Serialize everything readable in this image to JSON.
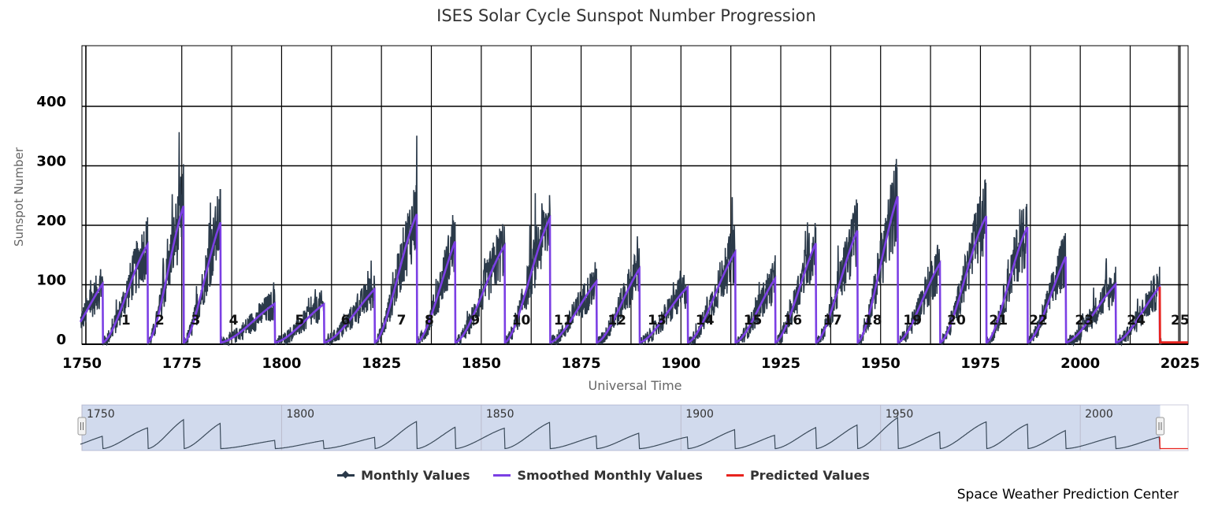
{
  "chart_data": {
    "type": "line",
    "title": "ISES Solar Cycle Sunspot Number Progression",
    "xlabel": "Universal Time",
    "ylabel": "Sunspot Number",
    "xlim": [
      1750,
      2027
    ],
    "ylim": [
      0,
      400
    ],
    "x_ticks": [
      "1750",
      "1775",
      "1800",
      "1825",
      "1850",
      "1875",
      "1900",
      "1925",
      "1950",
      "1975",
      "2000",
      "2025"
    ],
    "y_ticks": [
      "0",
      "100",
      "200",
      "300",
      "400"
    ],
    "grid": true,
    "legend_position": "bottom-center",
    "cycles": [
      {
        "label": "1",
        "year": 1761,
        "peak": 130
      },
      {
        "label": "2",
        "year": 1769.5,
        "peak": 180
      },
      {
        "label": "3",
        "year": 1778.5,
        "peak": 262
      },
      {
        "label": "4",
        "year": 1788,
        "peak": 233
      },
      {
        "label": "5",
        "year": 1804.5,
        "peak": 80
      },
      {
        "label": "6",
        "year": 1816,
        "peak": 78
      },
      {
        "label": "7",
        "year": 1830,
        "peak": 115
      },
      {
        "label": "8",
        "year": 1837,
        "peak": 240
      },
      {
        "label": "9",
        "year": 1848.5,
        "peak": 218
      },
      {
        "label": "10",
        "year": 1860,
        "peak": 185
      },
      {
        "label": "11",
        "year": 1870.5,
        "peak": 232
      },
      {
        "label": "12",
        "year": 1884,
        "peak": 124
      },
      {
        "label": "13",
        "year": 1894,
        "peak": 147
      },
      {
        "label": "14",
        "year": 1906,
        "peak": 107
      },
      {
        "label": "15",
        "year": 1918,
        "peak": 176
      },
      {
        "label": "16",
        "year": 1928,
        "peak": 130
      },
      {
        "label": "17",
        "year": 1938,
        "peak": 199
      },
      {
        "label": "18",
        "year": 1948,
        "peak": 218
      },
      {
        "label": "19",
        "year": 1958,
        "peak": 285
      },
      {
        "label": "20",
        "year": 1969,
        "peak": 156
      },
      {
        "label": "21",
        "year": 1979.5,
        "peak": 232
      },
      {
        "label": "22",
        "year": 1989.5,
        "peak": 212
      },
      {
        "label": "23",
        "year": 2001,
        "peak": 180
      },
      {
        "label": "24",
        "year": 2014,
        "peak": 116
      },
      {
        "label": "25",
        "year": 2025,
        "peak": 115
      }
    ],
    "cycle_minima": [
      1755.2,
      1766.5,
      1775.5,
      1784.7,
      1798.3,
      1810.6,
      1823.3,
      1833.9,
      1843.5,
      1855.9,
      1867.2,
      1878.9,
      1889.6,
      1901.7,
      1913.6,
      1923.6,
      1933.8,
      1944.2,
      1954.3,
      1964.9,
      1976.5,
      1986.8,
      1996.4,
      2008.9,
      2019.9
    ],
    "prediction_end": 2027,
    "series": [
      {
        "name": "Monthly Values",
        "color": "#2b3a4a"
      },
      {
        "name": "Smoothed Monthly Values",
        "color": "#7b3fe4"
      },
      {
        "name": "Predicted Values",
        "color": "#e8231e"
      }
    ]
  },
  "navigator": {
    "labels": [
      "1750",
      "1800",
      "1850",
      "1900",
      "1950",
      "2000"
    ],
    "selected_range": [
      1750,
      2020
    ]
  },
  "credit": "Space Weather Prediction Center"
}
